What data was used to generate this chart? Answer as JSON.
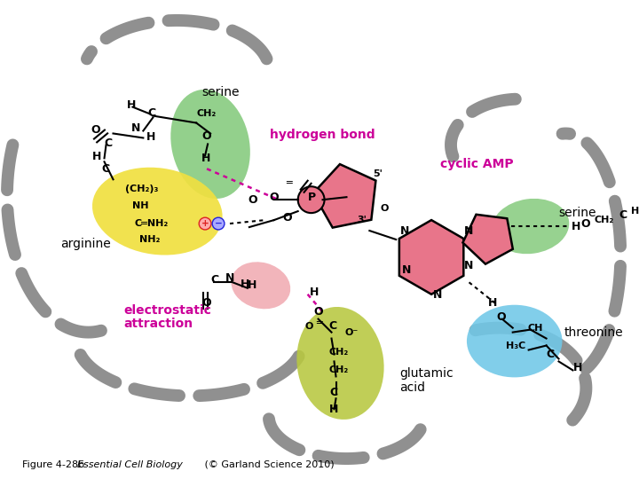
{
  "caption_plain": "Figure 4-28b  ",
  "caption_italic": "Essential Cell Biology",
  "caption_end": " (© Garland Science 2010)",
  "bg": "#ffffff",
  "gray": "#909090",
  "pink": "#e8758a",
  "pink_light": "#f0a8b0",
  "magenta": "#cc0099",
  "yellow": "#f0e040",
  "green": "#80c878",
  "blue": "#70c8e8",
  "olive": "#b8c840",
  "black": "#000000",
  "red_plus": "#dd2222",
  "blue_minus": "#2222dd"
}
